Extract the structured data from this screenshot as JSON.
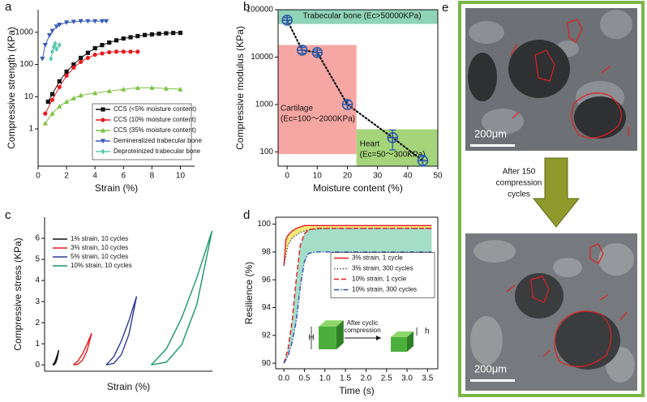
{
  "chart_data": [
    {
      "type": "line",
      "panel_label": "a",
      "x_label": "Strain (%)",
      "y_label": "Compressive strength (KPa)",
      "xlim": [
        0,
        11
      ],
      "xticks": [
        0,
        2,
        4,
        6,
        8,
        10
      ],
      "ylim": [
        0.07,
        5000
      ],
      "yticks": [
        1,
        10,
        100,
        1000
      ],
      "ylog": true,
      "legend": "lower right",
      "series": [
        {
          "name": "CCS (<5% moisture content)",
          "color": "#111111",
          "marker": "square",
          "x": [
            0.7,
            1,
            1.5,
            2,
            2.5,
            3,
            3.5,
            4,
            4.5,
            5,
            5.5,
            6,
            6.5,
            7,
            7.5,
            8,
            8.5,
            9,
            9.5,
            10
          ],
          "values": [
            7,
            12,
            30,
            60,
            100,
            160,
            230,
            320,
            400,
            480,
            560,
            640,
            700,
            760,
            820,
            860,
            900,
            930,
            950,
            960
          ]
        },
        {
          "name": "CCS (10% moisture content)",
          "color": "#e8191f",
          "marker": "circle",
          "x": [
            0.5,
            1,
            1.5,
            2,
            2.5,
            3,
            3.5,
            4,
            4.5,
            5,
            5.5,
            6,
            6.5,
            7
          ],
          "values": [
            3,
            8,
            20,
            45,
            80,
            120,
            160,
            200,
            220,
            240,
            250,
            250,
            250,
            250
          ]
        },
        {
          "name": "CCS (35% moisture content)",
          "color": "#7cc242",
          "marker": "triangle",
          "x": [
            0.5,
            1,
            1.5,
            2,
            2.5,
            3,
            4,
            5,
            6,
            7,
            8,
            9,
            10
          ],
          "values": [
            1.5,
            3,
            5,
            7,
            9,
            11,
            13,
            15,
            17,
            19,
            19,
            18,
            17
          ]
        },
        {
          "name": "Demineralized trabecular bone",
          "color": "#3a5bb8",
          "marker": "triangle_down",
          "x": [
            0.3,
            0.5,
            0.8,
            1,
            1.3,
            1.5,
            2,
            2.5,
            3,
            3.5,
            4,
            4.5,
            4.8
          ],
          "values": [
            150,
            400,
            800,
            1100,
            1500,
            1700,
            2000,
            2100,
            2200,
            2200,
            2200,
            2200,
            2200
          ]
        },
        {
          "name": "Deproteinized trabecular bone",
          "color": "#5ec8b0",
          "marker": "diamond",
          "x": [
            0.9,
            1,
            1.1,
            1.2,
            1.3,
            1.5
          ],
          "values": [
            150,
            250,
            350,
            450,
            300,
            400
          ]
        }
      ]
    },
    {
      "type": "scatter",
      "panel_label": "b",
      "x_label": "Moisture content (%)",
      "y_label": "Compressive modulus (KPa)",
      "xlim": [
        -3,
        50
      ],
      "xticks": [
        0,
        10,
        20,
        30,
        40,
        50
      ],
      "ylim": [
        50,
        100000
      ],
      "yticks": [
        100,
        1000,
        10000,
        100000
      ],
      "ylog": true,
      "color": "#2e5aa8",
      "x": [
        0,
        5,
        10,
        20,
        35,
        45
      ],
      "values": [
        60000,
        14000,
        12500,
        1000,
        200,
        65
      ],
      "errors": [
        8000,
        2000,
        1500,
        200,
        90,
        20
      ],
      "regions": [
        {
          "label": [
            "Trabecular bone (Ec>50000KPa)"
          ],
          "xrange": [
            -3,
            50
          ],
          "yrange": [
            50000,
            100000
          ],
          "color": "#8fd3b8"
        },
        {
          "label": [
            "Cartilage",
            "(Ec=100～2000KPa)"
          ],
          "xrange": [
            -3,
            23
          ],
          "yrange": [
            90,
            18000
          ],
          "color": "#f6a7a3"
        },
        {
          "label": [
            "Heart",
            "(Ec=50～300KPa)"
          ],
          "xrange": [
            23,
            50
          ],
          "yrange": [
            50,
            300
          ],
          "color": "#a5d47a"
        }
      ]
    },
    {
      "type": "line",
      "panel_label": "c",
      "x_label": "Strain (%)",
      "y_label": "Compressive stress (KPa)",
      "ylim": [
        -0.3,
        7
      ],
      "yticks": [
        0,
        1,
        2,
        3,
        4,
        5,
        6
      ],
      "legend": "upper left",
      "series": [
        {
          "name": "1% strain, 10 cycles",
          "color": "#111111",
          "x": [
            0,
            0.25,
            0.5,
            0.75,
            1,
            0.75,
            0.5,
            0.25,
            0
          ],
          "values": [
            0,
            0.08,
            0.25,
            0.46,
            0.7,
            0.32,
            0.1,
            0.01,
            0
          ]
        },
        {
          "name": "3% strain, 10 cycles",
          "color": "#e8191f",
          "x": [
            0,
            0.75,
            1.5,
            2.25,
            3,
            2.25,
            1.5,
            0.75,
            0
          ],
          "values": [
            0,
            0.18,
            0.52,
            0.98,
            1.5,
            0.68,
            0.22,
            0.03,
            0
          ]
        },
        {
          "name": "5% strain, 10 cycles",
          "color": "#2d3c9a",
          "x": [
            0,
            1.25,
            2.5,
            3.75,
            5,
            3.75,
            2.5,
            1.25,
            0
          ],
          "values": [
            0,
            0.39,
            1.14,
            2.11,
            3.25,
            1.46,
            0.49,
            0.07,
            0
          ]
        },
        {
          "name": "10% strain, 10 cycles",
          "color": "#1a9470",
          "x": [
            0,
            2.5,
            5,
            7.5,
            10,
            7.5,
            5,
            2.5,
            0
          ],
          "values": [
            0,
            0.76,
            2.22,
            4.13,
            6.35,
            2.86,
            0.95,
            0.13,
            0
          ]
        }
      ]
    },
    {
      "type": "line",
      "panel_label": "d",
      "x_label": "Time (s)",
      "y_label": "Resilience (%)",
      "xlim": [
        -0.2,
        3.75
      ],
      "xticks": [
        {
          "value": 0,
          "label": "0.0"
        },
        {
          "value": 0.5,
          "label": "0.5"
        },
        {
          "value": 1,
          "label": "1.0"
        },
        {
          "value": 1.5,
          "label": "1.5"
        },
        {
          "value": 2,
          "label": "2.0"
        },
        {
          "value": 2.5,
          "label": "2.5"
        },
        {
          "value": 3,
          "label": "3.0"
        },
        {
          "value": 3.5,
          "label": "3.5"
        }
      ],
      "ylim": [
        89.6,
        100.5
      ],
      "yticks": [
        90,
        92,
        94,
        96,
        98,
        100
      ],
      "legend": "center right",
      "series": [
        {
          "name": "3% strain, 1 cycle",
          "color": "#e8191f",
          "dash": "solid",
          "fill_color": "#f2e24e",
          "x": [
            0,
            0.05,
            0.1,
            0.2,
            0.3,
            0.5,
            0.8,
            1,
            3.6
          ],
          "values": [
            97,
            98.9,
            99.2,
            99.5,
            99.7,
            99.9,
            99.9,
            99.9,
            99.9
          ]
        },
        {
          "name": "3% strain, 300 cycles",
          "color": "#555555",
          "dash": "dotted",
          "x": [
            0,
            0.1,
            0.2,
            0.4,
            0.6,
            0.8,
            1,
            3.6
          ],
          "values": [
            97,
            98.5,
            99,
            99.4,
            99.6,
            99.65,
            99.7,
            99.7
          ]
        },
        {
          "name": "10% strain, 1 cycle",
          "color": "#e8191f",
          "dash": "dashed",
          "fill_color": "#86d1b5",
          "x": [
            0,
            0.1,
            0.2,
            0.3,
            0.4,
            0.5,
            0.6,
            0.8,
            1,
            3.6
          ],
          "values": [
            90,
            91,
            93,
            96,
            98.5,
            99.3,
            99.6,
            99.7,
            99.7,
            99.7
          ]
        },
        {
          "name": "10% strain, 300 cycles",
          "color": "#2d4fb0",
          "dash": "dashdot",
          "x": [
            0,
            0.1,
            0.2,
            0.3,
            0.4,
            0.5,
            0.6,
            0.8,
            3.6
          ],
          "values": [
            90,
            90.5,
            91.5,
            93,
            95.5,
            97.3,
            97.9,
            98,
            98
          ]
        }
      ],
      "inset": {
        "before": "H",
        "arrow_text": [
          "After cyclic",
          "compression"
        ],
        "after": "h"
      }
    }
  ],
  "panel_e": {
    "panel_label": "e",
    "scale_bar": [
      "200μm",
      "200μm"
    ],
    "arrow_text": [
      "After 150",
      "compression",
      "cycles"
    ]
  }
}
